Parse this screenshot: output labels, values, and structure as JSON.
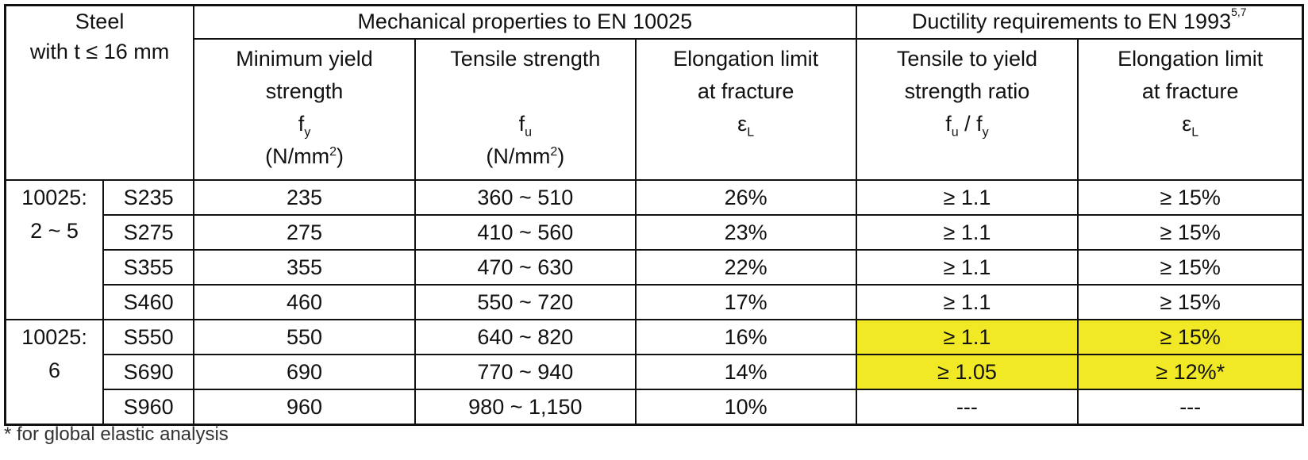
{
  "header": {
    "steel_line1": "Steel",
    "steel_line2": "with t ≤ 16 mm",
    "mech_title": "Mechanical properties to EN 10025",
    "duct_title": "Ductility requirements to EN 1993",
    "duct_refs": "5,7",
    "yield": {
      "line1": "Minimum yield",
      "line2": "strength",
      "symbol": "f",
      "sub": "y",
      "unit": "(N/mm",
      "unit_sup": "2",
      "unit_close": ")"
    },
    "tensile": {
      "line1": "Tensile strength",
      "symbol": "f",
      "sub": "u",
      "unit": "(N/mm",
      "unit_sup": "2",
      "unit_close": ")"
    },
    "elong": {
      "line1": "Elongation limit",
      "line2": "at fracture",
      "symbol": "ε",
      "sub": "L"
    },
    "ratio": {
      "line1": "Tensile to yield",
      "line2": "strength ratio",
      "symbol1": "f",
      "sub1": "u",
      "sep": " / ",
      "symbol2": "f",
      "sub2": "y"
    },
    "duct_elong": {
      "line1": "Elongation limit",
      "line2": "at fracture",
      "symbol": "ε",
      "sub": "L"
    }
  },
  "groups": [
    {
      "line1": "10025:",
      "line2": "2 ~ 5"
    },
    {
      "line1": "10025:",
      "line2": "6"
    }
  ],
  "rows": [
    {
      "grade": "S235",
      "fy": "235",
      "fu": "360 ~ 510",
      "elong": "26%",
      "ratio": "≥ 1.1",
      "duct": "≥ 15%"
    },
    {
      "grade": "S275",
      "fy": "275",
      "fu": "410 ~ 560",
      "elong": "23%",
      "ratio": "≥ 1.1",
      "duct": "≥ 15%"
    },
    {
      "grade": "S355",
      "fy": "355",
      "fu": "470 ~ 630",
      "elong": "22%",
      "ratio": "≥ 1.1",
      "duct": "≥ 15%"
    },
    {
      "grade": "S460",
      "fy": "460",
      "fu": "550 ~ 720",
      "elong": "17%",
      "ratio": "≥ 1.1",
      "duct": "≥ 15%"
    },
    {
      "grade": "S550",
      "fy": "550",
      "fu": "640 ~ 820",
      "elong": "16%",
      "ratio": "≥ 1.1",
      "duct": "≥ 15%"
    },
    {
      "grade": "S690",
      "fy": "690",
      "fu": "770 ~ 940",
      "elong": "14%",
      "ratio": "≥ 1.05",
      "duct": "≥ 12%*"
    },
    {
      "grade": "S960",
      "fy": "960",
      "fu": "980 ~ 1,150",
      "elong": "10%",
      "ratio": "---",
      "duct": "---"
    }
  ],
  "highlight_color": "#f1e926",
  "footnote": "* for global elastic analysis"
}
